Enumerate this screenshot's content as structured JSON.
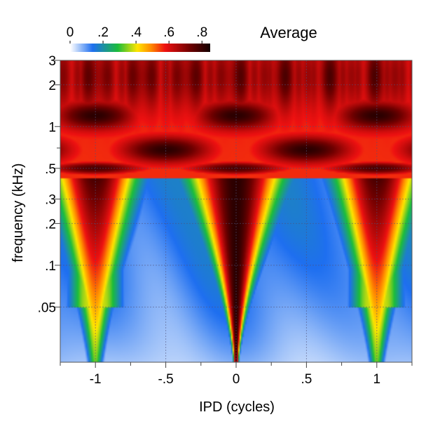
{
  "chart_data": {
    "type": "heatmap",
    "title": "Average",
    "xlabel": "IPD (cycles)",
    "ylabel": "frequency (kHz)",
    "x_scale": "linear",
    "y_scale": "log",
    "xlim": [
      -1.25,
      1.25
    ],
    "ylim": [
      0.02,
      3
    ],
    "x_ticks": [
      -1,
      -0.5,
      0,
      0.5,
      1
    ],
    "x_tick_labels": [
      "-1",
      "-.5",
      "0",
      ".5",
      "1"
    ],
    "y_ticks": [
      0.05,
      0.1,
      0.2,
      0.3,
      0.5,
      1,
      2,
      3
    ],
    "y_tick_labels": [
      ".05",
      ".1",
      ".2",
      ".3",
      ".5",
      "1",
      "2",
      "3"
    ],
    "grid": true,
    "colorbar": {
      "range": [
        0,
        0.85
      ],
      "ticks": [
        0,
        0.2,
        0.4,
        0.6,
        0.8
      ],
      "tick_labels": [
        "0",
        ".2",
        ".4",
        ".6",
        ".8"
      ],
      "colors": [
        "#ffffff",
        "#1e6ff0",
        "#1bbd3b",
        "#ffe600",
        "#ff8800",
        "#ee1111",
        "#6e0000",
        "#140000"
      ],
      "placement": "top-left"
    },
    "description_values": {
      "y_rows_khz": [
        2.8,
        2.2,
        1.2,
        1.0,
        0.7,
        0.5,
        0.35,
        0.2,
        0.1,
        0.05,
        0.03
      ],
      "value_at_ipd_0": [
        0.62,
        0.75,
        0.82,
        0.8,
        0.66,
        0.82,
        0.82,
        0.8,
        0.72,
        0.75,
        0.5
      ],
      "value_at_ipd_0.5": [
        0.6,
        0.72,
        0.55,
        0.52,
        0.8,
        0.62,
        0.22,
        0.12,
        0.12,
        0.15,
        0.1
      ],
      "value_at_ipd_1": [
        0.62,
        0.75,
        0.82,
        0.8,
        0.66,
        0.82,
        0.72,
        0.5,
        0.4,
        0.25,
        0.15
      ]
    }
  }
}
